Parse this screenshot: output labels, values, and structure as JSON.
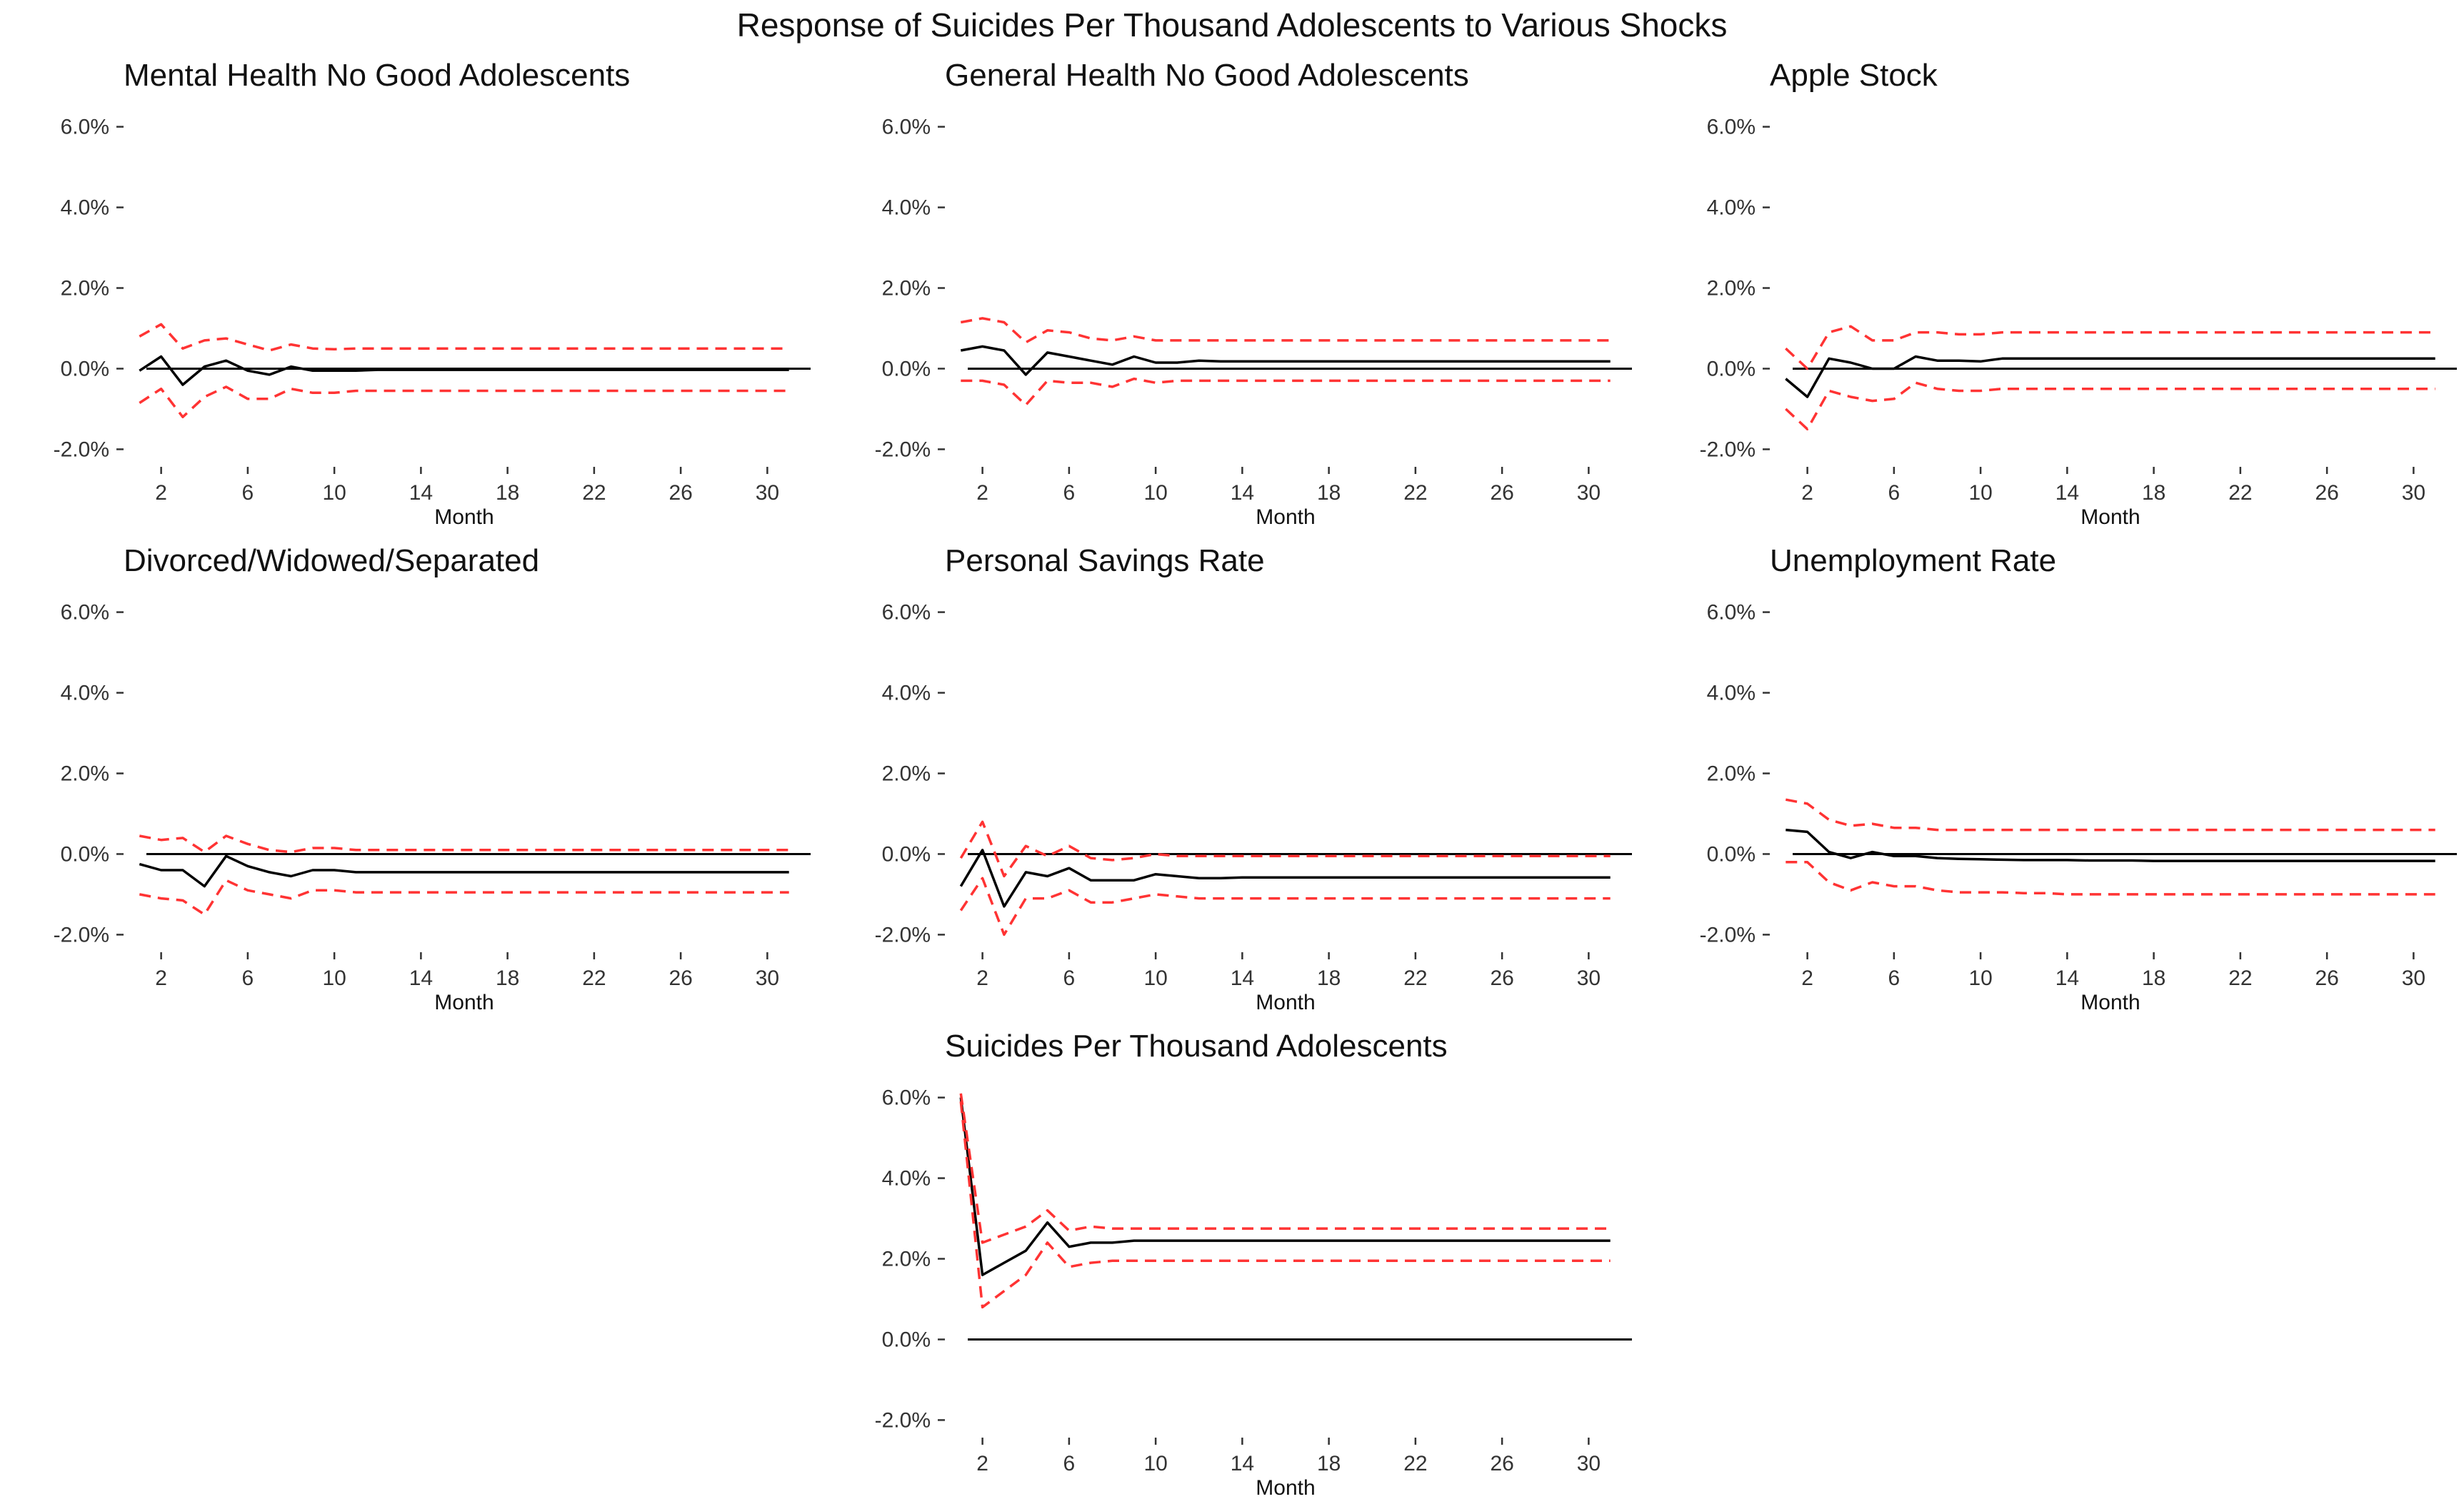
{
  "title": "Response of Suicides Per Thousand Adolescents to Various Shocks",
  "colors": {
    "response": "#000000",
    "bands": "#ff3333",
    "zero_line": "#000000"
  },
  "chart_data": [
    {
      "type": "line",
      "title": "Mental Health No Good Adolescents",
      "xlabel": "Month",
      "ylabel": "",
      "x_ticks": [
        2,
        6,
        10,
        14,
        18,
        22,
        26,
        30
      ],
      "y_ticks": [
        "-2.0%",
        "0.0%",
        "2.0%",
        "4.0%",
        "6.0%"
      ],
      "xlim": [
        0,
        32
      ],
      "ylim": [
        -2.4,
        6.4
      ],
      "x": [
        1,
        2,
        3,
        4,
        5,
        6,
        7,
        8,
        9,
        10,
        11,
        12,
        13,
        14,
        15,
        16,
        17,
        18,
        19,
        20,
        21,
        22,
        23,
        24,
        25,
        26,
        27,
        28,
        29,
        30,
        31
      ],
      "series": [
        {
          "role": "response",
          "values": [
            -0.05,
            0.3,
            -0.4,
            0.05,
            0.2,
            -0.05,
            -0.15,
            0.05,
            -0.05,
            -0.05,
            -0.05,
            -0.03,
            -0.03,
            -0.03,
            -0.03,
            -0.03,
            -0.03,
            -0.03,
            -0.03,
            -0.03,
            -0.03,
            -0.03,
            -0.03,
            -0.03,
            -0.03,
            -0.03,
            -0.03,
            -0.03,
            -0.03,
            -0.03,
            -0.03
          ]
        },
        {
          "role": "upper",
          "values": [
            0.8,
            1.1,
            0.5,
            0.7,
            0.75,
            0.6,
            0.45,
            0.6,
            0.5,
            0.48,
            0.5,
            0.5,
            0.5,
            0.5,
            0.5,
            0.5,
            0.5,
            0.5,
            0.5,
            0.5,
            0.5,
            0.5,
            0.5,
            0.5,
            0.5,
            0.5,
            0.5,
            0.5,
            0.5,
            0.5,
            0.5
          ]
        },
        {
          "role": "lower",
          "values": [
            -0.85,
            -0.5,
            -1.2,
            -0.7,
            -0.45,
            -0.75,
            -0.75,
            -0.5,
            -0.6,
            -0.6,
            -0.55,
            -0.55,
            -0.55,
            -0.55,
            -0.55,
            -0.55,
            -0.55,
            -0.55,
            -0.55,
            -0.55,
            -0.55,
            -0.55,
            -0.55,
            -0.55,
            -0.55,
            -0.55,
            -0.55,
            -0.55,
            -0.55,
            -0.55,
            -0.55
          ]
        }
      ]
    },
    {
      "type": "line",
      "title": "General Health No Good Adolescents",
      "xlabel": "Month",
      "ylabel": "",
      "x_ticks": [
        2,
        6,
        10,
        14,
        18,
        22,
        26,
        30
      ],
      "y_ticks": [
        "-2.0%",
        "0.0%",
        "2.0%",
        "4.0%",
        "6.0%"
      ],
      "xlim": [
        0,
        32
      ],
      "ylim": [
        -2.4,
        6.4
      ],
      "x": [
        1,
        2,
        3,
        4,
        5,
        6,
        7,
        8,
        9,
        10,
        11,
        12,
        13,
        14,
        15,
        16,
        17,
        18,
        19,
        20,
        21,
        22,
        23,
        24,
        25,
        26,
        27,
        28,
        29,
        30,
        31
      ],
      "series": [
        {
          "role": "response",
          "values": [
            0.45,
            0.55,
            0.45,
            -0.15,
            0.4,
            0.3,
            0.2,
            0.1,
            0.3,
            0.15,
            0.15,
            0.2,
            0.18,
            0.18,
            0.18,
            0.18,
            0.18,
            0.18,
            0.18,
            0.18,
            0.18,
            0.18,
            0.18,
            0.18,
            0.18,
            0.18,
            0.18,
            0.18,
            0.18,
            0.18,
            0.18
          ]
        },
        {
          "role": "upper",
          "values": [
            1.15,
            1.25,
            1.15,
            0.65,
            0.95,
            0.9,
            0.75,
            0.7,
            0.8,
            0.7,
            0.7,
            0.7,
            0.7,
            0.7,
            0.7,
            0.7,
            0.7,
            0.7,
            0.7,
            0.7,
            0.7,
            0.7,
            0.7,
            0.7,
            0.7,
            0.7,
            0.7,
            0.7,
            0.7,
            0.7,
            0.7
          ]
        },
        {
          "role": "lower",
          "values": [
            -0.3,
            -0.3,
            -0.4,
            -0.9,
            -0.3,
            -0.35,
            -0.35,
            -0.45,
            -0.25,
            -0.35,
            -0.3,
            -0.3,
            -0.3,
            -0.3,
            -0.3,
            -0.3,
            -0.3,
            -0.3,
            -0.3,
            -0.3,
            -0.3,
            -0.3,
            -0.3,
            -0.3,
            -0.3,
            -0.3,
            -0.3,
            -0.3,
            -0.3,
            -0.3,
            -0.3
          ]
        }
      ]
    },
    {
      "type": "line",
      "title": "Apple Stock",
      "xlabel": "Month",
      "ylabel": "",
      "x_ticks": [
        2,
        6,
        10,
        14,
        18,
        22,
        26,
        30
      ],
      "y_ticks": [
        "-2.0%",
        "0.0%",
        "2.0%",
        "4.0%",
        "6.0%"
      ],
      "xlim": [
        0,
        32
      ],
      "ylim": [
        -2.4,
        6.4
      ],
      "x": [
        1,
        2,
        3,
        4,
        5,
        6,
        7,
        8,
        9,
        10,
        11,
        12,
        13,
        14,
        15,
        16,
        17,
        18,
        19,
        20,
        21,
        22,
        23,
        24,
        25,
        26,
        27,
        28,
        29,
        30,
        31
      ],
      "series": [
        {
          "role": "response",
          "values": [
            -0.25,
            -0.7,
            0.25,
            0.15,
            0.0,
            0.0,
            0.3,
            0.2,
            0.2,
            0.18,
            0.25,
            0.25,
            0.25,
            0.25,
            0.25,
            0.25,
            0.25,
            0.25,
            0.25,
            0.25,
            0.25,
            0.25,
            0.25,
            0.25,
            0.25,
            0.25,
            0.25,
            0.25,
            0.25,
            0.25,
            0.25
          ]
        },
        {
          "role": "upper",
          "values": [
            0.5,
            0.0,
            0.9,
            1.05,
            0.7,
            0.7,
            0.9,
            0.9,
            0.85,
            0.85,
            0.9,
            0.9,
            0.9,
            0.9,
            0.9,
            0.9,
            0.9,
            0.9,
            0.9,
            0.9,
            0.9,
            0.9,
            0.9,
            0.9,
            0.9,
            0.9,
            0.9,
            0.9,
            0.9,
            0.9,
            0.9
          ]
        },
        {
          "role": "lower",
          "values": [
            -1.0,
            -1.5,
            -0.55,
            -0.7,
            -0.8,
            -0.75,
            -0.35,
            -0.5,
            -0.55,
            -0.55,
            -0.5,
            -0.5,
            -0.5,
            -0.5,
            -0.5,
            -0.5,
            -0.5,
            -0.5,
            -0.5,
            -0.5,
            -0.5,
            -0.5,
            -0.5,
            -0.5,
            -0.5,
            -0.5,
            -0.5,
            -0.5,
            -0.5,
            -0.5,
            -0.5
          ]
        }
      ]
    },
    {
      "type": "line",
      "title": "Divorced/Widowed/Separated",
      "xlabel": "Month",
      "ylabel": "",
      "x_ticks": [
        2,
        6,
        10,
        14,
        18,
        22,
        26,
        30
      ],
      "y_ticks": [
        "-2.0%",
        "0.0%",
        "2.0%",
        "4.0%",
        "6.0%"
      ],
      "xlim": [
        0,
        32
      ],
      "ylim": [
        -2.4,
        6.4
      ],
      "x": [
        1,
        2,
        3,
        4,
        5,
        6,
        7,
        8,
        9,
        10,
        11,
        12,
        13,
        14,
        15,
        16,
        17,
        18,
        19,
        20,
        21,
        22,
        23,
        24,
        25,
        26,
        27,
        28,
        29,
        30,
        31
      ],
      "series": [
        {
          "role": "response",
          "values": [
            -0.25,
            -0.4,
            -0.4,
            -0.8,
            -0.05,
            -0.3,
            -0.45,
            -0.55,
            -0.4,
            -0.4,
            -0.45,
            -0.45,
            -0.45,
            -0.45,
            -0.45,
            -0.45,
            -0.45,
            -0.45,
            -0.45,
            -0.45,
            -0.45,
            -0.45,
            -0.45,
            -0.45,
            -0.45,
            -0.45,
            -0.45,
            -0.45,
            -0.45,
            -0.45,
            -0.45
          ]
        },
        {
          "role": "upper",
          "values": [
            0.45,
            0.35,
            0.4,
            0.05,
            0.45,
            0.25,
            0.1,
            0.05,
            0.15,
            0.15,
            0.1,
            0.1,
            0.1,
            0.1,
            0.1,
            0.1,
            0.1,
            0.1,
            0.1,
            0.1,
            0.1,
            0.1,
            0.1,
            0.1,
            0.1,
            0.1,
            0.1,
            0.1,
            0.1,
            0.1,
            0.1
          ]
        },
        {
          "role": "lower",
          "values": [
            -1.0,
            -1.1,
            -1.15,
            -1.5,
            -0.65,
            -0.9,
            -1.0,
            -1.1,
            -0.9,
            -0.9,
            -0.95,
            -0.95,
            -0.95,
            -0.95,
            -0.95,
            -0.95,
            -0.95,
            -0.95,
            -0.95,
            -0.95,
            -0.95,
            -0.95,
            -0.95,
            -0.95,
            -0.95,
            -0.95,
            -0.95,
            -0.95,
            -0.95,
            -0.95,
            -0.95
          ]
        }
      ]
    },
    {
      "type": "line",
      "title": "Personal Savings Rate",
      "xlabel": "Month",
      "ylabel": "",
      "x_ticks": [
        2,
        6,
        10,
        14,
        18,
        22,
        26,
        30
      ],
      "y_ticks": [
        "-2.0%",
        "0.0%",
        "2.0%",
        "4.0%",
        "6.0%"
      ],
      "xlim": [
        0,
        32
      ],
      "ylim": [
        -2.4,
        6.4
      ],
      "x": [
        1,
        2,
        3,
        4,
        5,
        6,
        7,
        8,
        9,
        10,
        11,
        12,
        13,
        14,
        15,
        16,
        17,
        18,
        19,
        20,
        21,
        22,
        23,
        24,
        25,
        26,
        27,
        28,
        29,
        30,
        31
      ],
      "series": [
        {
          "role": "response",
          "values": [
            -0.8,
            0.1,
            -1.3,
            -0.45,
            -0.55,
            -0.35,
            -0.65,
            -0.65,
            -0.65,
            -0.5,
            -0.55,
            -0.6,
            -0.6,
            -0.58,
            -0.58,
            -0.58,
            -0.58,
            -0.58,
            -0.58,
            -0.58,
            -0.58,
            -0.58,
            -0.58,
            -0.58,
            -0.58,
            -0.58,
            -0.58,
            -0.58,
            -0.58,
            -0.58,
            -0.58
          ]
        },
        {
          "role": "upper",
          "values": [
            -0.1,
            0.8,
            -0.55,
            0.2,
            -0.05,
            0.2,
            -0.1,
            -0.15,
            -0.1,
            0.0,
            -0.05,
            -0.05,
            -0.05,
            -0.05,
            -0.05,
            -0.05,
            -0.05,
            -0.05,
            -0.05,
            -0.05,
            -0.05,
            -0.05,
            -0.05,
            -0.05,
            -0.05,
            -0.05,
            -0.05,
            -0.05,
            -0.05,
            -0.05,
            -0.05
          ]
        },
        {
          "role": "lower",
          "values": [
            -1.4,
            -0.6,
            -2.0,
            -1.1,
            -1.1,
            -0.9,
            -1.2,
            -1.2,
            -1.1,
            -1.0,
            -1.05,
            -1.1,
            -1.1,
            -1.1,
            -1.1,
            -1.1,
            -1.1,
            -1.1,
            -1.1,
            -1.1,
            -1.1,
            -1.1,
            -1.1,
            -1.1,
            -1.1,
            -1.1,
            -1.1,
            -1.1,
            -1.1,
            -1.1,
            -1.1
          ]
        }
      ]
    },
    {
      "type": "line",
      "title": "Unemployment Rate",
      "xlabel": "Month",
      "ylabel": "",
      "x_ticks": [
        2,
        6,
        10,
        14,
        18,
        22,
        26,
        30
      ],
      "y_ticks": [
        "-2.0%",
        "0.0%",
        "2.0%",
        "4.0%",
        "6.0%"
      ],
      "xlim": [
        0,
        32
      ],
      "ylim": [
        -2.4,
        6.4
      ],
      "x": [
        1,
        2,
        3,
        4,
        5,
        6,
        7,
        8,
        9,
        10,
        11,
        12,
        13,
        14,
        15,
        16,
        17,
        18,
        19,
        20,
        21,
        22,
        23,
        24,
        25,
        26,
        27,
        28,
        29,
        30,
        31
      ],
      "series": [
        {
          "role": "response",
          "values": [
            0.6,
            0.55,
            0.05,
            -0.1,
            0.05,
            -0.05,
            -0.05,
            -0.1,
            -0.12,
            -0.13,
            -0.14,
            -0.15,
            -0.15,
            -0.15,
            -0.16,
            -0.16,
            -0.16,
            -0.17,
            -0.17,
            -0.17,
            -0.17,
            -0.17,
            -0.17,
            -0.17,
            -0.17,
            -0.17,
            -0.17,
            -0.17,
            -0.17,
            -0.17,
            -0.17
          ]
        },
        {
          "role": "upper",
          "values": [
            1.35,
            1.25,
            0.85,
            0.7,
            0.75,
            0.65,
            0.65,
            0.6,
            0.6,
            0.6,
            0.6,
            0.6,
            0.6,
            0.6,
            0.6,
            0.6,
            0.6,
            0.6,
            0.6,
            0.6,
            0.6,
            0.6,
            0.6,
            0.6,
            0.6,
            0.6,
            0.6,
            0.6,
            0.6,
            0.6,
            0.6
          ]
        },
        {
          "role": "lower",
          "values": [
            -0.2,
            -0.2,
            -0.7,
            -0.9,
            -0.7,
            -0.8,
            -0.8,
            -0.9,
            -0.95,
            -0.95,
            -0.95,
            -0.97,
            -0.97,
            -1.0,
            -1.0,
            -1.0,
            -1.0,
            -1.0,
            -1.0,
            -1.0,
            -1.0,
            -1.0,
            -1.0,
            -1.0,
            -1.0,
            -1.0,
            -1.0,
            -1.0,
            -1.0,
            -1.0,
            -1.0
          ]
        }
      ]
    },
    {
      "type": "line",
      "title": "Suicides Per Thousand Adolescents",
      "xlabel": "Month",
      "ylabel": "",
      "x_ticks": [
        2,
        6,
        10,
        14,
        18,
        22,
        26,
        30
      ],
      "y_ticks": [
        "-2.0%",
        "0.0%",
        "2.0%",
        "4.0%",
        "6.0%"
      ],
      "xlim": [
        0,
        32
      ],
      "ylim": [
        -2.4,
        6.4
      ],
      "x": [
        1,
        2,
        3,
        4,
        5,
        6,
        7,
        8,
        9,
        10,
        11,
        12,
        13,
        14,
        15,
        16,
        17,
        18,
        19,
        20,
        21,
        22,
        23,
        24,
        25,
        26,
        27,
        28,
        29,
        30,
        31
      ],
      "series": [
        {
          "role": "response",
          "values": [
            6.0,
            1.6,
            1.9,
            2.2,
            2.9,
            2.3,
            2.4,
            2.4,
            2.45,
            2.45,
            2.45,
            2.45,
            2.45,
            2.45,
            2.45,
            2.45,
            2.45,
            2.45,
            2.45,
            2.45,
            2.45,
            2.45,
            2.45,
            2.45,
            2.45,
            2.45,
            2.45,
            2.45,
            2.45,
            2.45,
            2.45
          ]
        },
        {
          "role": "upper",
          "values": [
            6.1,
            2.4,
            2.6,
            2.8,
            3.2,
            2.7,
            2.8,
            2.75,
            2.75,
            2.75,
            2.75,
            2.75,
            2.75,
            2.75,
            2.75,
            2.75,
            2.75,
            2.75,
            2.75,
            2.75,
            2.75,
            2.75,
            2.75,
            2.75,
            2.75,
            2.75,
            2.75,
            2.75,
            2.75,
            2.75,
            2.75
          ]
        },
        {
          "role": "lower",
          "values": [
            5.9,
            0.8,
            1.2,
            1.6,
            2.4,
            1.8,
            1.9,
            1.95,
            1.95,
            1.95,
            1.95,
            1.95,
            1.95,
            1.95,
            1.95,
            1.95,
            1.95,
            1.95,
            1.95,
            1.95,
            1.95,
            1.95,
            1.95,
            1.95,
            1.95,
            1.95,
            1.95,
            1.95,
            1.95,
            1.95,
            1.95
          ]
        }
      ]
    }
  ]
}
